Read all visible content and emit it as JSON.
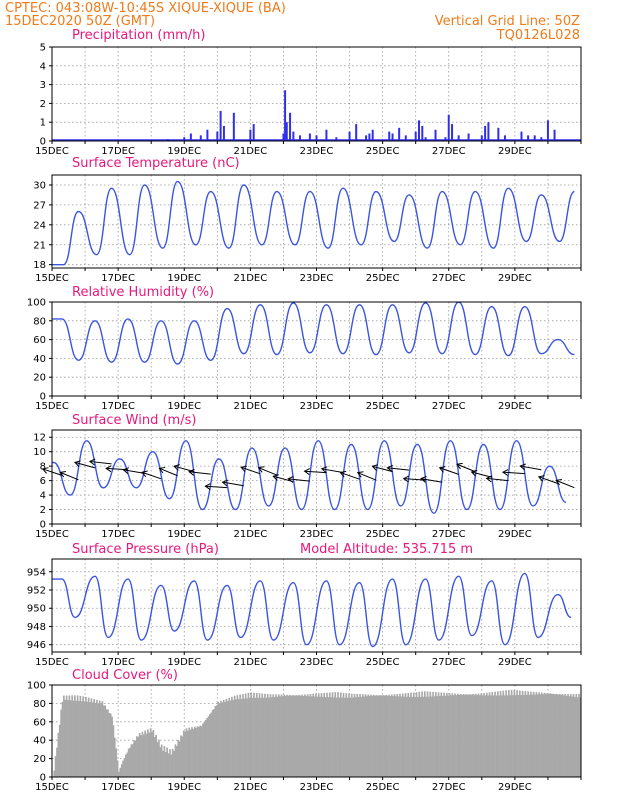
{
  "header": {
    "line1": "CPTEC:   043:08W-10:45S  XIQUE-XIQUE (BA)",
    "line2": "15DEC2020 50Z (GMT)",
    "right1": "Vertical Grid Line: 50Z",
    "right2": "TQ0126L028"
  },
  "colors": {
    "header": "#f07b1a",
    "titles": "#e6197c",
    "series": "#3a55e0",
    "bars": "#3030e8",
    "cloud": "#a9a9a9",
    "wind_arrows": "#000000"
  },
  "chart_data": [
    {
      "type": "bar",
      "title": "Precipitation (mm/h)",
      "ylim": [
        0,
        5
      ],
      "yticks": [
        "0",
        "1",
        "2",
        "3",
        "4",
        "5"
      ],
      "x_range_days": [
        15,
        31
      ],
      "x_ticks": [
        "15DEC",
        "17DEC",
        "19DEC",
        "21DEC",
        "23DEC",
        "25DEC",
        "27DEC",
        "29DEC"
      ],
      "x": [
        15.5,
        16.5,
        17.5,
        18.5,
        19.0,
        19.2,
        19.5,
        19.7,
        20.0,
        20.1,
        20.2,
        20.5,
        21.0,
        21.1,
        22.0,
        22.05,
        22.1,
        22.2,
        22.3,
        22.5,
        22.8,
        23.0,
        23.3,
        23.6,
        24.0,
        24.2,
        24.5,
        24.6,
        24.7,
        25.2,
        25.3,
        25.5,
        25.7,
        26.0,
        26.1,
        26.2,
        26.3,
        26.6,
        26.9,
        27.0,
        27.1,
        27.3,
        27.6,
        28.0,
        28.1,
        28.2,
        28.5,
        28.7,
        29.2,
        29.4,
        29.6,
        29.8,
        30.0,
        30.2
      ],
      "values": [
        0.05,
        0.05,
        0.05,
        0.1,
        0.2,
        0.4,
        0.3,
        0.6,
        0.5,
        1.6,
        0.8,
        1.5,
        0.6,
        0.9,
        0.4,
        2.7,
        1.0,
        1.5,
        0.5,
        0.3,
        0.4,
        0.3,
        0.6,
        0.2,
        0.5,
        0.9,
        0.3,
        0.4,
        0.6,
        0.5,
        0.4,
        0.7,
        0.3,
        0.5,
        1.1,
        0.8,
        0.2,
        0.6,
        0.2,
        1.4,
        0.9,
        0.3,
        0.4,
        0.3,
        0.8,
        1.0,
        0.7,
        0.3,
        0.5,
        0.3,
        0.3,
        0.2,
        1.1,
        0.6
      ]
    },
    {
      "type": "line",
      "title": "Surface Temperature (nC)",
      "ylim": [
        17.5,
        31.5
      ],
      "yticks": [
        "18",
        "21",
        "24",
        "27",
        "30"
      ],
      "x_ticks": [
        "15DEC",
        "17DEC",
        "19DEC",
        "21DEC",
        "23DEC",
        "25DEC",
        "27DEC",
        "29DEC"
      ],
      "daily_min": [
        18.0,
        19.5,
        19.5,
        20.5,
        21.0,
        20.5,
        21.0,
        21.0,
        20.5,
        21.0,
        21.5,
        20.5,
        21.0,
        20.5,
        21.5,
        21.5
      ],
      "daily_max": [
        26.0,
        29.5,
        30.0,
        30.5,
        29.0,
        30.0,
        29.0,
        29.0,
        29.5,
        29.0,
        28.5,
        29.0,
        29.0,
        29.5,
        28.5,
        29.0
      ]
    },
    {
      "type": "line",
      "title": "Relative Humidity (%)",
      "ylim": [
        0,
        100
      ],
      "yticks": [
        "0",
        "20",
        "40",
        "60",
        "80",
        "100"
      ],
      "x_ticks": [
        "15DEC",
        "17DEC",
        "19DEC",
        "21DEC",
        "23DEC",
        "25DEC",
        "27DEC",
        "29DEC"
      ],
      "daily_min": [
        38,
        36,
        36,
        34,
        38,
        45,
        44,
        46,
        45,
        44,
        46,
        45,
        44,
        43,
        45,
        44
      ],
      "daily_max": [
        82,
        80,
        82,
        80,
        80,
        93,
        97,
        99,
        97,
        97,
        97,
        99,
        100,
        95,
        95,
        60
      ]
    },
    {
      "type": "line",
      "title": "Surface Wind (m/s)",
      "ylim": [
        0,
        13
      ],
      "yticks": [
        "0",
        "2",
        "4",
        "6",
        "8",
        "10",
        "12"
      ],
      "x_ticks": [
        "15DEC",
        "17DEC",
        "19DEC",
        "21DEC",
        "23DEC",
        "25DEC",
        "27DEC",
        "29DEC"
      ],
      "daily_min": [
        4.0,
        5.0,
        5.0,
        3.5,
        2.0,
        2.0,
        2.5,
        2.0,
        2.0,
        2.0,
        2.5,
        1.5,
        2.0,
        2.0,
        2.5,
        3.0
      ],
      "daily_max": [
        8.5,
        11.5,
        9.0,
        10.0,
        11.5,
        9.0,
        10.5,
        10.5,
        11.5,
        11.0,
        11.5,
        11.0,
        11.5,
        11.0,
        11.5,
        8.0
      ],
      "arrows": "black wind vectors pointing toward west-southwest"
    },
    {
      "type": "line",
      "title": "Surface Pressure (hPa)",
      "annotation": "Model Altitude: 535.715  m",
      "ylim": [
        945.2,
        955.4
      ],
      "yticks": [
        "946",
        "948",
        "950",
        "952",
        "954"
      ],
      "x_ticks": [
        "15DEC",
        "17DEC",
        "19DEC",
        "21DEC",
        "23DEC",
        "25DEC",
        "27DEC",
        "29DEC"
      ],
      "daily_min": [
        949.0,
        946.8,
        946.5,
        947.5,
        946.5,
        946.8,
        946.5,
        946.0,
        946.0,
        945.8,
        946.0,
        946.5,
        947.0,
        946.0,
        946.8,
        949.0
      ],
      "daily_max": [
        953.2,
        953.5,
        953.2,
        952.5,
        953.0,
        952.5,
        953.0,
        952.8,
        953.0,
        952.8,
        953.2,
        953.2,
        953.5,
        953.0,
        953.8,
        951.5
      ]
    },
    {
      "type": "area",
      "title": "Cloud Cover (%)",
      "ylim": [
        0,
        100
      ],
      "yticks": [
        "0",
        "20",
        "40",
        "60",
        "80",
        "100"
      ],
      "x_ticks": [
        "15DEC",
        "17DEC",
        "19DEC",
        "21DEC",
        "23DEC",
        "25DEC",
        "27DEC",
        "29DEC"
      ],
      "x": [
        15.0,
        15.3,
        16.0,
        16.5,
        16.8,
        17.0,
        17.1,
        17.3,
        17.6,
        18.0,
        18.3,
        18.6,
        19.0,
        19.5,
        20.0,
        20.5,
        21.0,
        21.5,
        22.0,
        23.0,
        24.0,
        24.5,
        25.0,
        26.0,
        27.0,
        28.0,
        29.0,
        30.0,
        31.0
      ],
      "values": [
        0,
        90,
        88,
        85,
        70,
        10,
        20,
        35,
        50,
        55,
        35,
        30,
        55,
        60,
        85,
        90,
        92,
        92,
        93,
        93,
        92,
        93,
        93,
        93,
        94,
        94,
        95,
        95,
        92
      ]
    }
  ]
}
